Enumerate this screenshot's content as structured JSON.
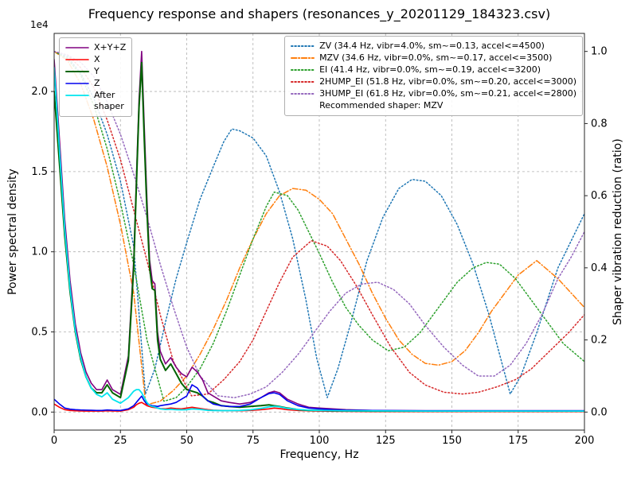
{
  "title": "Frequency response and shapers (resonances_y_20201129_184323.csv)",
  "legend_note": "Recommended shaper: MZV",
  "chart_data": {
    "type": "line",
    "grid": "dashed",
    "x_axis": {
      "label": "Frequency, Hz",
      "min": 0,
      "max": 200,
      "ticks": [
        0,
        25,
        50,
        75,
        100,
        125,
        150,
        175,
        200
      ],
      "tick_labels": [
        "0",
        "25",
        "50",
        "75",
        "100",
        "125",
        "150",
        "175",
        "200"
      ]
    },
    "y_left": {
      "label": "Power spectral density",
      "offset": "1e4",
      "min": -1125,
      "max": 23625,
      "ticks": [
        0,
        5000,
        10000,
        15000,
        20000
      ],
      "tick_labels": [
        "0.0",
        "0.5",
        "1.0",
        "1.5",
        "2.0"
      ]
    },
    "y_right": {
      "label": "Shaper vibration reduction (ratio)",
      "min": -0.05,
      "max": 1.05,
      "ticks": [
        0.0,
        0.2,
        0.4,
        0.6,
        0.8,
        1.0
      ],
      "tick_labels": [
        "0.0",
        "0.2",
        "0.4",
        "0.6",
        "0.8",
        "1.0"
      ]
    },
    "psd_series": [
      {
        "name": "X+Y+Z",
        "id": "x-y-z-sum",
        "color": "#800080",
        "style": "solid",
        "width": 1.6,
        "x": [
          0,
          2,
          4,
          6,
          8,
          10,
          12,
          14,
          16,
          18,
          20,
          22,
          25,
          28,
          30,
          31,
          32,
          33,
          34,
          35,
          36,
          37,
          38,
          39,
          40,
          42,
          44,
          46,
          48,
          50,
          52,
          54,
          56,
          58,
          60,
          63,
          66,
          70,
          74,
          78,
          81,
          83,
          85,
          88,
          92,
          96,
          100,
          105,
          110,
          120,
          140,
          160,
          180,
          200
        ],
        "y": [
          22000,
          17000,
          12000,
          8200,
          5500,
          3700,
          2500,
          1800,
          1400,
          1400,
          2000,
          1400,
          1100,
          3500,
          9500,
          14500,
          19500,
          22500,
          17800,
          13200,
          9500,
          8200,
          8000,
          5000,
          3800,
          3000,
          3400,
          2800,
          2400,
          2200,
          2800,
          2500,
          2000,
          1200,
          1000,
          700,
          600,
          500,
          600,
          900,
          1200,
          1300,
          1200,
          800,
          500,
          300,
          250,
          200,
          150,
          100,
          80,
          80,
          80,
          80
        ]
      },
      {
        "name": "X",
        "id": "x",
        "color": "#ff0000",
        "style": "solid",
        "width": 1.6,
        "x": [
          0,
          2,
          4,
          6,
          8,
          10,
          12,
          14,
          16,
          18,
          20,
          22,
          25,
          28,
          30,
          31,
          32,
          33,
          34,
          35,
          36,
          37,
          38,
          39,
          40,
          42,
          44,
          46,
          48,
          50,
          52,
          54,
          56,
          58,
          60,
          63,
          66,
          70,
          74,
          78,
          81,
          83,
          85,
          88,
          92,
          96,
          100,
          105,
          110,
          120,
          140,
          160,
          180,
          200
        ],
        "y": [
          500,
          300,
          150,
          100,
          80,
          70,
          60,
          60,
          60,
          60,
          80,
          70,
          60,
          150,
          300,
          450,
          550,
          600,
          500,
          400,
          350,
          300,
          280,
          250,
          220,
          200,
          250,
          220,
          200,
          250,
          300,
          250,
          200,
          150,
          120,
          100,
          90,
          80,
          100,
          150,
          200,
          250,
          220,
          150,
          100,
          80,
          60,
          50,
          40,
          30,
          30,
          30,
          30,
          30
        ]
      },
      {
        "name": "Y",
        "id": "y",
        "color": "#006400",
        "style": "solid",
        "width": 2.0,
        "x": [
          0,
          2,
          4,
          6,
          8,
          10,
          12,
          14,
          16,
          18,
          20,
          22,
          25,
          28,
          30,
          31,
          32,
          33,
          34,
          35,
          36,
          37,
          38,
          39,
          40,
          42,
          44,
          46,
          48,
          50,
          52,
          54,
          56,
          58,
          60,
          63,
          66,
          70,
          74,
          78,
          81,
          83,
          85,
          88,
          92,
          96,
          100,
          105,
          110,
          120,
          140,
          160,
          180,
          200
        ],
        "y": [
          20000,
          15500,
          11000,
          7500,
          5000,
          3300,
          2200,
          1500,
          1200,
          1200,
          1700,
          1200,
          900,
          3200,
          9000,
          14000,
          19000,
          21800,
          17000,
          12500,
          9000,
          7700,
          7600,
          4500,
          3300,
          2600,
          3000,
          2400,
          1800,
          1400,
          1300,
          1200,
          1000,
          700,
          600,
          400,
          350,
          300,
          350,
          400,
          450,
          400,
          350,
          250,
          150,
          100,
          100,
          80,
          70,
          60,
          60,
          60,
          60,
          60
        ]
      },
      {
        "name": "Z",
        "id": "z",
        "color": "#0000ee",
        "style": "solid",
        "width": 1.6,
        "x": [
          0,
          2,
          4,
          6,
          8,
          10,
          12,
          14,
          16,
          18,
          20,
          22,
          25,
          28,
          30,
          31,
          32,
          33,
          34,
          35,
          36,
          37,
          38,
          39,
          40,
          42,
          44,
          46,
          48,
          50,
          52,
          54,
          56,
          58,
          60,
          63,
          66,
          70,
          74,
          78,
          81,
          83,
          85,
          88,
          92,
          96,
          100,
          105,
          110,
          120,
          140,
          160,
          180,
          200
        ],
        "y": [
          800,
          500,
          250,
          180,
          150,
          130,
          120,
          110,
          100,
          100,
          130,
          110,
          100,
          200,
          400,
          600,
          800,
          1000,
          700,
          500,
          450,
          400,
          380,
          350,
          400,
          450,
          500,
          600,
          800,
          1000,
          1700,
          1500,
          1000,
          700,
          500,
          400,
          350,
          350,
          500,
          900,
          1150,
          1200,
          1100,
          700,
          400,
          250,
          200,
          150,
          120,
          100,
          80,
          80,
          80,
          80
        ]
      },
      {
        "name": "After\nshaper",
        "id": "after-shaper",
        "color": "#00e5ee",
        "style": "solid",
        "width": 1.8,
        "x": [
          0,
          2,
          4,
          6,
          8,
          10,
          12,
          14,
          16,
          18,
          20,
          22,
          25,
          28,
          30,
          31,
          32,
          33,
          34,
          35,
          36,
          37,
          38,
          39,
          40,
          42,
          44,
          46,
          48,
          50,
          52,
          54,
          56,
          58,
          60,
          63,
          66,
          70,
          74,
          78,
          81,
          83,
          85,
          88,
          92,
          96,
          100,
          105,
          110,
          120,
          140,
          160,
          180,
          200
        ],
        "y": [
          21500,
          16300,
          11400,
          7700,
          5100,
          3400,
          2200,
          1500,
          1100,
          950,
          1200,
          800,
          550,
          900,
          1300,
          1400,
          1400,
          1200,
          900,
          600,
          420,
          350,
          320,
          250,
          200,
          160,
          170,
          150,
          140,
          150,
          200,
          180,
          150,
          110,
          100,
          90,
          90,
          100,
          140,
          230,
          330,
          360,
          330,
          230,
          160,
          120,
          100,
          90,
          80,
          70,
          60,
          60,
          60,
          60
        ]
      }
    ],
    "shaper_series": [
      {
        "name": "ZV",
        "id": "zv",
        "label": "ZV (34.4 Hz, vibr=4.0%, sm~=0.13, accel<=4500)",
        "color": "#1f77b4",
        "style": "dotted",
        "x": [
          0,
          5,
          10,
          15,
          20,
          25,
          30,
          34.4,
          38,
          42,
          46,
          50,
          55,
          60,
          64,
          67,
          70,
          75,
          80,
          85,
          90,
          95,
          99,
          103,
          107,
          112,
          118,
          124,
          130,
          135,
          140,
          146,
          152,
          158,
          164,
          168,
          172,
          176,
          182,
          190,
          200
        ],
        "y": [
          1.0,
          0.985,
          0.94,
          0.87,
          0.77,
          0.64,
          0.46,
          0.05,
          0.12,
          0.25,
          0.37,
          0.47,
          0.59,
          0.68,
          0.75,
          0.785,
          0.78,
          0.76,
          0.71,
          0.61,
          0.48,
          0.31,
          0.15,
          0.04,
          0.12,
          0.25,
          0.42,
          0.54,
          0.62,
          0.645,
          0.64,
          0.6,
          0.52,
          0.41,
          0.27,
          0.16,
          0.05,
          0.1,
          0.22,
          0.4,
          0.55
        ]
      },
      {
        "name": "MZV",
        "id": "mzv",
        "label": "MZV (34.6 Hz, vibr=0.0%, sm~=0.17, accel<=3500)",
        "color": "#ff7f0e",
        "style": "dashdot",
        "x": [
          0,
          5,
          10,
          15,
          20,
          25,
          30,
          34.6,
          40,
          45,
          50,
          55,
          60,
          65,
          70,
          75,
          80,
          85,
          90,
          95,
          100,
          105,
          110,
          115,
          120,
          125,
          130,
          135,
          140,
          145,
          150,
          155,
          160,
          165,
          170,
          175,
          182,
          190,
          200
        ],
        "y": [
          1.0,
          0.975,
          0.91,
          0.81,
          0.68,
          0.52,
          0.33,
          0.02,
          0.03,
          0.06,
          0.1,
          0.16,
          0.23,
          0.31,
          0.4,
          0.48,
          0.55,
          0.6,
          0.62,
          0.615,
          0.59,
          0.55,
          0.48,
          0.41,
          0.33,
          0.26,
          0.2,
          0.16,
          0.135,
          0.13,
          0.14,
          0.17,
          0.22,
          0.28,
          0.33,
          0.38,
          0.42,
          0.37,
          0.29
        ]
      },
      {
        "name": "EI",
        "id": "ei",
        "label": "EI (41.4 Hz, vibr=0.0%, sm~=0.19, accel<=3200)",
        "color": "#2ca02c",
        "style": "dotted",
        "x": [
          0,
          5,
          10,
          15,
          20,
          25,
          30,
          35,
          41.4,
          46,
          50,
          55,
          60,
          65,
          70,
          75,
          80,
          83,
          88,
          92,
          96,
          100,
          105,
          110,
          115,
          120,
          126,
          132,
          138,
          145,
          152,
          158,
          163,
          168,
          174,
          180,
          186,
          192,
          200
        ],
        "y": [
          1.0,
          0.98,
          0.935,
          0.85,
          0.73,
          0.58,
          0.41,
          0.2,
          0.03,
          0.04,
          0.07,
          0.12,
          0.19,
          0.28,
          0.38,
          0.48,
          0.57,
          0.61,
          0.6,
          0.56,
          0.5,
          0.44,
          0.36,
          0.29,
          0.24,
          0.2,
          0.17,
          0.18,
          0.22,
          0.29,
          0.36,
          0.4,
          0.415,
          0.41,
          0.37,
          0.31,
          0.25,
          0.19,
          0.14
        ]
      },
      {
        "name": "2HUMP_EI",
        "id": "2hump-ei",
        "label": "2HUMP_EI (51.8 Hz, vibr=0.0%, sm~=0.20, accel<=3000)",
        "color": "#d62728",
        "style": "dotted",
        "x": [
          0,
          5,
          10,
          15,
          20,
          25,
          30,
          35,
          40,
          45,
          51.8,
          58,
          64,
          70,
          75,
          80,
          85,
          90,
          97,
          103,
          108,
          114,
          120,
          127,
          134,
          140,
          147,
          154,
          160,
          167,
          174,
          180,
          187,
          194,
          200
        ],
        "y": [
          1.0,
          0.99,
          0.955,
          0.9,
          0.81,
          0.7,
          0.56,
          0.42,
          0.27,
          0.14,
          0.045,
          0.05,
          0.09,
          0.14,
          0.2,
          0.28,
          0.36,
          0.43,
          0.475,
          0.46,
          0.42,
          0.35,
          0.27,
          0.18,
          0.11,
          0.075,
          0.055,
          0.05,
          0.055,
          0.07,
          0.09,
          0.12,
          0.17,
          0.22,
          0.27
        ]
      },
      {
        "name": "3HUMP_EI",
        "id": "3hump-ei",
        "label": "3HUMP_EI (61.8 Hz, vibr=0.0%, sm~=0.21, accel<=2800)",
        "color": "#9467bd",
        "style": "dotted",
        "x": [
          0,
          5,
          10,
          15,
          20,
          25,
          30,
          35,
          40,
          45,
          50,
          55,
          61.8,
          68,
          74,
          80,
          86,
          92,
          98,
          104,
          110,
          116,
          122,
          128,
          134,
          140,
          147,
          154,
          160,
          166,
          172,
          178,
          184,
          190,
          195,
          200
        ],
        "y": [
          1.0,
          0.99,
          0.97,
          0.93,
          0.86,
          0.77,
          0.66,
          0.54,
          0.41,
          0.29,
          0.18,
          0.1,
          0.045,
          0.04,
          0.05,
          0.07,
          0.11,
          0.16,
          0.22,
          0.28,
          0.33,
          0.355,
          0.36,
          0.34,
          0.3,
          0.24,
          0.18,
          0.13,
          0.1,
          0.1,
          0.13,
          0.19,
          0.27,
          0.37,
          0.43,
          0.5
        ]
      }
    ],
    "recommended": "MZV"
  }
}
